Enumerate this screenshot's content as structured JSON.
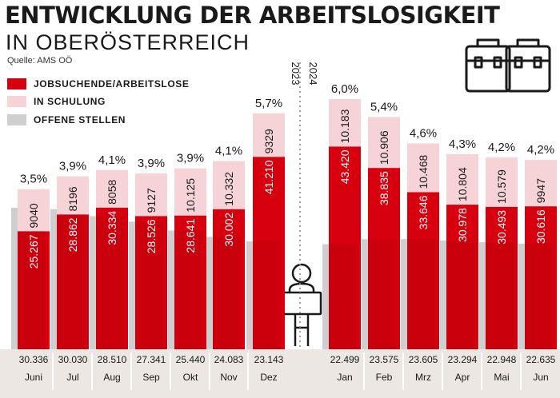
{
  "header": {
    "title": "ENTWICKLUNG DER ARBEITSLOSIGKEIT",
    "subtitle": "IN OBERÖSTERREICH",
    "source": "Quelle: AMS OÖ"
  },
  "legend": [
    {
      "label": "JOBSUCHENDE/ARBEITSLOSE",
      "color": "#d7000f"
    },
    {
      "label": "IN SCHULUNG",
      "color": "#f6d3d6"
    },
    {
      "label": "OFFENE STELLEN",
      "color": "#cfcfcf"
    }
  ],
  "icons": [
    "briefcase-icon",
    "briefcase-icon",
    "person-with-sign-icon"
  ],
  "chart_data": {
    "type": "bar",
    "title": "ENTWICKLUNG DER ARBEITSLOSIGKEIT IN OBERÖSTERREICH",
    "year_labels": [
      "2023",
      "2024"
    ],
    "categories": [
      "Juni",
      "Jul",
      "Aug",
      "Sep",
      "Okt",
      "Nov",
      "Dez",
      "Jan",
      "Feb",
      "Mrz",
      "Apr",
      "Mai",
      "Jun"
    ],
    "series": [
      {
        "name": "JOBSUCHENDE/ARBEITSLOSE",
        "values": [
          25267,
          28862,
          30334,
          28526,
          28641,
          30002,
          41210,
          43420,
          38835,
          33646,
          30978,
          30493,
          30616
        ],
        "labels": [
          "25.267",
          "28.862",
          "30.334",
          "28.526",
          "28.641",
          "30.002",
          "41.210",
          "43.420",
          "38.835",
          "33.646",
          "30.978",
          "30.493",
          "30.616"
        ]
      },
      {
        "name": "IN SCHULUNG",
        "values": [
          9040,
          8196,
          8058,
          9127,
          10125,
          10332,
          9329,
          10183,
          10906,
          10468,
          10804,
          10579,
          9947
        ],
        "labels": [
          "9040",
          "8196",
          "8058",
          "9127",
          "10.125",
          "10.332",
          "9329",
          "10.183",
          "10.906",
          "10.468",
          "10.804",
          "10.579",
          "9947"
        ]
      },
      {
        "name": "OFFENE STELLEN",
        "values": [
          30336,
          30030,
          28510,
          27341,
          25440,
          24083,
          23143,
          22499,
          23575,
          23605,
          23294,
          22948,
          22635
        ],
        "labels": [
          "30.336",
          "30.030",
          "28.510",
          "27.341",
          "25.440",
          "24.083",
          "23.143",
          "22.499",
          "23.575",
          "23.605",
          "23.294",
          "22.948",
          "22.635"
        ]
      }
    ],
    "rate_labels": [
      "3,5%",
      "3,9%",
      "4,1%",
      "3,9%",
      "3,9%",
      "4,1%",
      "5,7%",
      "6,0%",
      "5,4%",
      "4,6%",
      "4,3%",
      "4,2%",
      "4,2%"
    ],
    "ylim": [
      0,
      60000
    ],
    "grid": false
  },
  "colors": {
    "red": "#d7000f",
    "pink": "#f6d3d6",
    "grey": "#cfcfcf",
    "strip": "#ece7e3",
    "text": "#1a1a1a"
  }
}
